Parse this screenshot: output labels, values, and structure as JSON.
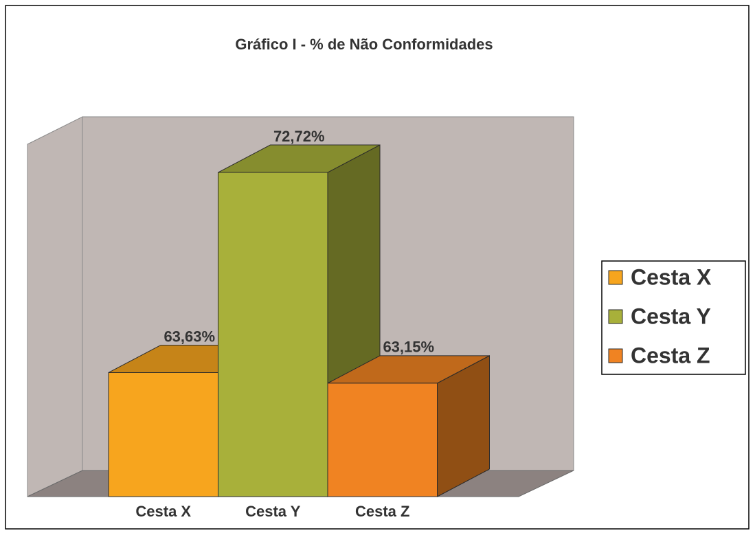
{
  "chart_data": {
    "type": "bar",
    "title": "Gráfico I - % de Não Conformidades",
    "categories": [
      "Cesta X",
      "Cesta Y",
      "Cesta Z"
    ],
    "values": [
      63.63,
      72.72,
      63.15
    ],
    "value_labels": [
      "63,63%",
      "72,72%",
      "63,15%"
    ],
    "colors": [
      "#f7a51e",
      "#a8b03a",
      "#f08322"
    ],
    "ylim": [
      58,
      74
    ],
    "legend": "right"
  }
}
